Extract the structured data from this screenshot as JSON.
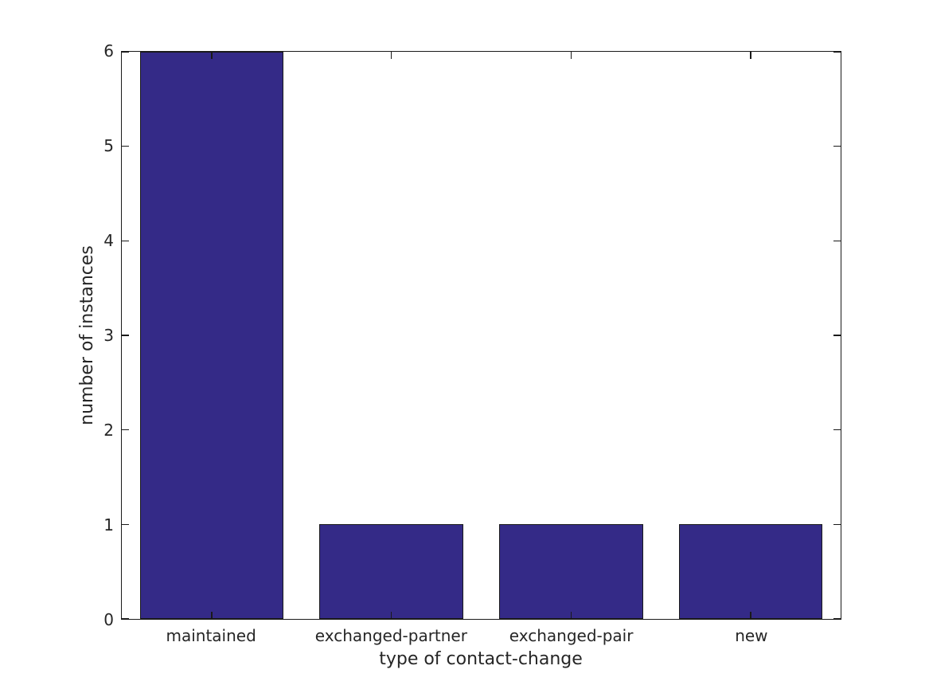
{
  "chart_data": {
    "type": "bar",
    "title": "",
    "categories": [
      "maintained",
      "exchanged-partner",
      "exchanged-pair",
      "new"
    ],
    "values": [
      6,
      1,
      1,
      1
    ],
    "xlabel": "type of contact-change",
    "ylabel": "number of instances",
    "ylim": [
      0,
      6
    ],
    "yticks": [
      0,
      1,
      2,
      3,
      4,
      5,
      6
    ],
    "bar_width_fraction": 0.8,
    "grid": false,
    "legend": null,
    "colors": {
      "bar_fill": "#342a87",
      "bar_edge": "#1a1a1a",
      "axis_frame": "#1a1a1a",
      "text": "#262626",
      "background": "#ffffff"
    }
  }
}
